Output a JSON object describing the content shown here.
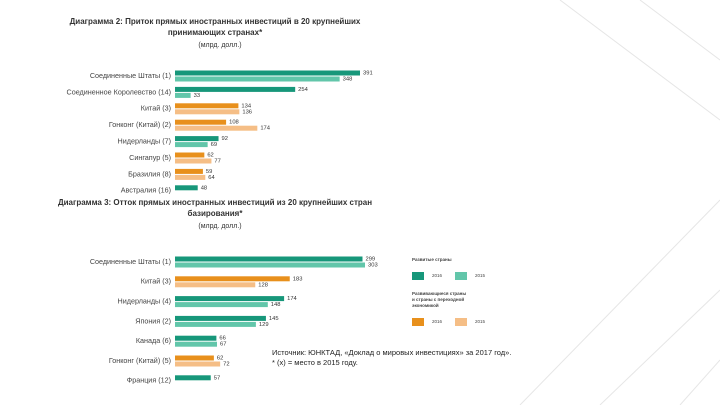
{
  "chart_data": [
    {
      "type": "bar",
      "title_lines": [
        "Диаграмма 2: Приток прямых иностранных инвестиций в 20 крупнейших",
        "принимающих странах*"
      ],
      "subtitle": "(млрд. долл.)",
      "categories": [
        "Соединенные Штаты (1)",
        "Соединенное Королевство (14)",
        "Китай (3)",
        "Гонконг (Китай) (2)",
        "Нидерланды (7)",
        "Сингапур (5)",
        "Бразилия (8)",
        "Австралия (16)"
      ],
      "series": [
        {
          "name": "2016",
          "values": [
            391,
            254,
            134,
            108,
            92,
            62,
            59,
            48
          ],
          "colors": [
            "#17977a",
            "#17977a",
            "#e8901c",
            "#e8901c",
            "#17977a",
            "#e8901c",
            "#e8901c",
            "#17977a"
          ]
        },
        {
          "name": "2015",
          "values": [
            348,
            33,
            136,
            174,
            69,
            77,
            64,
            null
          ],
          "colors": [
            "#62c6aa",
            "#62c6aa",
            "#f5be86",
            "#f5be86",
            "#62c6aa",
            "#f5be86",
            "#f5be86",
            "#62c6aa"
          ]
        }
      ]
    },
    {
      "type": "bar",
      "title_lines": [
        "Диаграмма 3: Отток прямых иностранных инвестиций из 20 крупнейших стран",
        "базирования*"
      ],
      "subtitle": "(млрд. долл.)",
      "categories": [
        "Соединенные Штаты (1)",
        "Китай (3)",
        "Нидерланды (4)",
        "Япония (2)",
        "Канада (6)",
        "Гонконг (Китай) (5)",
        "Франция (12)"
      ],
      "series": [
        {
          "name": "2016",
          "values": [
            299,
            183,
            174,
            145,
            66,
            62,
            57
          ],
          "colors": [
            "#17977a",
            "#e8901c",
            "#17977a",
            "#17977a",
            "#17977a",
            "#e8901c",
            "#17977a"
          ]
        },
        {
          "name": "2015",
          "values": [
            303,
            128,
            148,
            129,
            67,
            72,
            null
          ],
          "colors": [
            "#62c6aa",
            "#f5be86",
            "#62c6aa",
            "#62c6aa",
            "#62c6aa",
            "#f5be86",
            "#62c6aa"
          ]
        }
      ]
    }
  ],
  "legend": [
    {
      "name_lines": [
        "Развитые страны"
      ],
      "items": [
        {
          "label": "2016",
          "color": "#17977a"
        },
        {
          "label": "2015",
          "color": "#62c6aa"
        }
      ]
    },
    {
      "name_lines": [
        "Развивающиеся страны",
        "и страны с переходной",
        "экономикой"
      ],
      "items": [
        {
          "label": "2016",
          "color": "#e8901c"
        },
        {
          "label": "2015",
          "color": "#f5be86"
        }
      ]
    }
  ],
  "source_lines": [
    "Источник: ЮНКТАД, «Доклад о мировых инвестициях» за 2017 год».",
    "* (x) = место в 2015 году."
  ]
}
